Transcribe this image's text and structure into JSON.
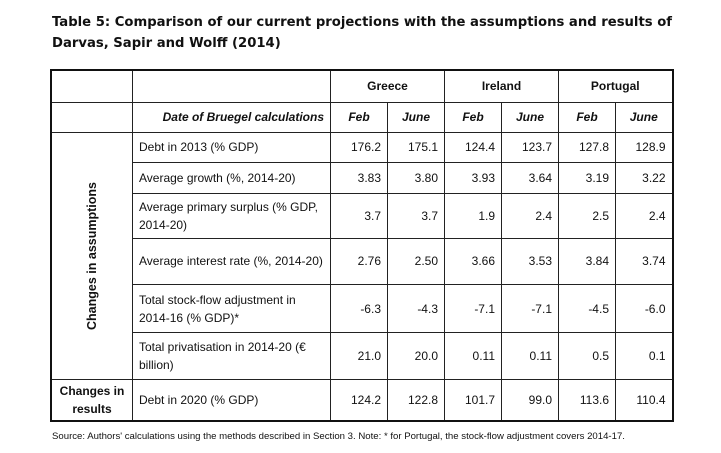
{
  "title": "Table 5: Comparison of our current projections with the assumptions and results of Darvas, Sapir and Wolff (2014)",
  "table": {
    "countries": [
      "Greece",
      "Ireland",
      "Portugal"
    ],
    "header_label": "Date of Bruegel calculations",
    "months": [
      "Feb",
      "June",
      "Feb",
      "June",
      "Feb",
      "June"
    ],
    "group_assumptions": "Changes in assumptions",
    "group_results": "Changes in results",
    "rows": [
      {
        "label": "Debt in 2013 (% GDP)",
        "values": [
          "176.2",
          "175.1",
          "124.4",
          "123.7",
          "127.8",
          "128.9"
        ]
      },
      {
        "label": "Average growth (%, 2014-20)",
        "values": [
          "3.83",
          "3.80",
          "3.93",
          "3.64",
          "3.19",
          "3.22"
        ]
      },
      {
        "label": "Average primary surplus (% GDP, 2014-20)",
        "values": [
          "3.7",
          "3.7",
          "1.9",
          "2.4",
          "2.5",
          "2.4"
        ]
      },
      {
        "label": "Average interest rate (%, 2014-20)",
        "values": [
          "2.76",
          "2.50",
          "3.66",
          "3.53",
          "3.84",
          "3.74"
        ]
      },
      {
        "label": "Total stock-flow adjustment in 2014-16 (% GDP)*",
        "values": [
          "-6.3",
          "-4.3",
          "-7.1",
          "-7.1",
          "-4.5",
          "-6.0"
        ]
      },
      {
        "label": "Total privatisation in 2014-20 (€ billion)",
        "values": [
          "21.0",
          "20.0",
          "0.11",
          "0.11",
          "0.5",
          "0.1"
        ]
      },
      {
        "label": "Debt in 2020 (% GDP)",
        "values": [
          "124.2",
          "122.8",
          "101.7",
          "99.0",
          "113.6",
          "110.4"
        ]
      }
    ]
  },
  "source": "Source: Authors' calculations using the methods described in Section 3. Note: * for Portugal, the stock-flow adjustment covers 2014-17."
}
